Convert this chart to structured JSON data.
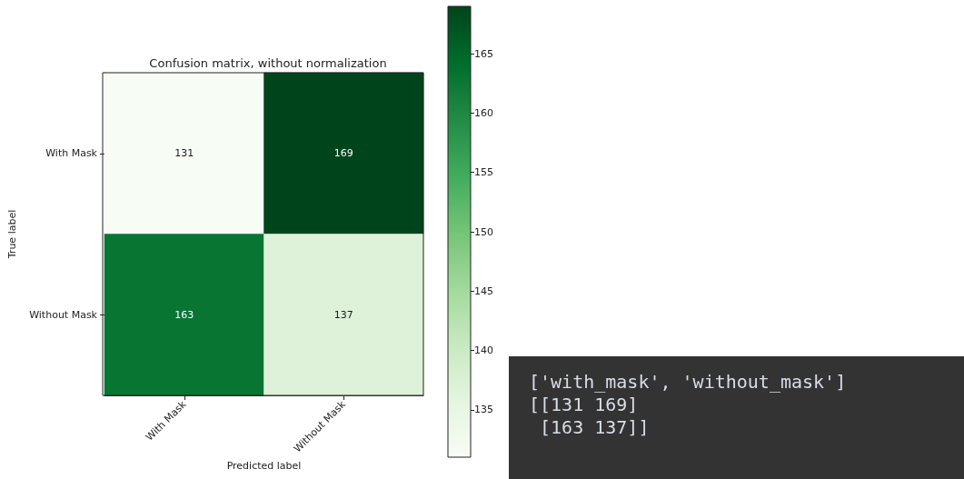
{
  "chart_data": [
    {
      "type": "heatmap",
      "title": "Confusion matrix, without normalization",
      "xlabel": "Predicted label",
      "ylabel": "True label",
      "categories": [
        "With Mask",
        "Without Mask"
      ],
      "y_categories": [
        "With Mask",
        "Without Mask"
      ],
      "cells": [
        [
          131,
          169
        ],
        [
          163,
          137
        ]
      ],
      "clim": [
        131,
        169
      ],
      "cticks": [
        135,
        140,
        145,
        150,
        155,
        160,
        165
      ],
      "data_labels": true,
      "grid": false
    },
    {
      "type": "other",
      "annotations": [
        "['with_mask', 'without_mask']",
        "[[131 169]",
        " [163 137]]"
      ]
    }
  ]
}
